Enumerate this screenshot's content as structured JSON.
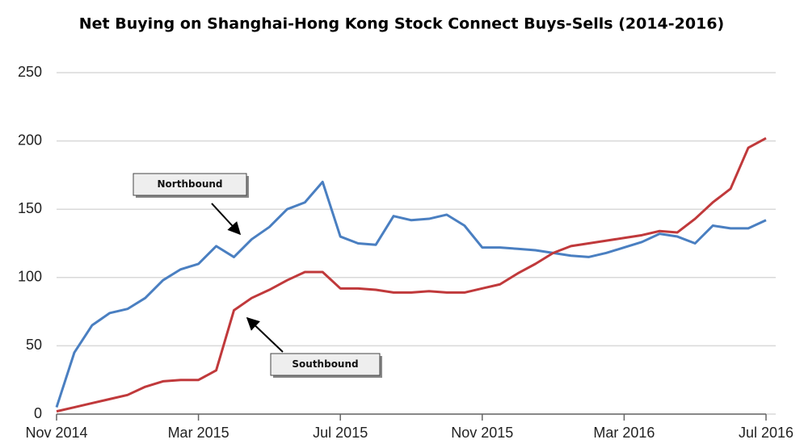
{
  "chart_data": {
    "type": "line",
    "title": "Net Buying on Shanghai-Hong Kong Stock Connect Buys-Sells (2014-2016)",
    "x": [
      0,
      0.5,
      1,
      1.5,
      2,
      2.5,
      3,
      3.5,
      4,
      4.5,
      5,
      5.5,
      6,
      6.5,
      7,
      7.5,
      8,
      8.5,
      9,
      9.5,
      10,
      10.5,
      11,
      11.5,
      12,
      12.5,
      13,
      13.5,
      14,
      14.5,
      15,
      15.5,
      16,
      16.5,
      17,
      17.5,
      18,
      18.5,
      19,
      19.5,
      20
    ],
    "series": [
      {
        "name": "Northbound",
        "color": "#4a7fc1",
        "values": [
          5,
          45,
          65,
          74,
          77,
          85,
          98,
          106,
          110,
          123,
          115,
          128,
          137,
          150,
          155,
          170,
          130,
          125,
          124,
          145,
          142,
          143,
          146,
          138,
          122,
          122,
          121,
          120,
          118,
          116,
          115,
          118,
          122,
          126,
          132,
          130,
          125,
          138,
          136,
          136,
          142
        ]
      },
      {
        "name": "Southbound",
        "color": "#c0393b",
        "values": [
          2,
          5,
          8,
          11,
          14,
          20,
          24,
          25,
          25,
          32,
          76,
          85,
          91,
          98,
          104,
          104,
          92,
          92,
          91,
          89,
          89,
          90,
          89,
          89,
          92,
          95,
          103,
          110,
          118,
          123,
          125,
          127,
          129,
          131,
          134,
          133,
          143,
          155,
          165,
          195,
          202
        ]
      }
    ],
    "annotations": [
      {
        "text": "Northbound"
      },
      {
        "text": "Southbound"
      }
    ],
    "xlim": [
      0,
      20
    ],
    "xticks": [
      {
        "value": 0,
        "label": "Nov 2014"
      },
      {
        "value": 4,
        "label": "Mar 2015"
      },
      {
        "value": 8,
        "label": "Jul 2015"
      },
      {
        "value": 12,
        "label": "Nov 2015"
      },
      {
        "value": 16,
        "label": "Mar 2016"
      },
      {
        "value": 20,
        "label": "Jul 2016"
      }
    ],
    "ylim": [
      0,
      250
    ],
    "yticks": [
      0,
      50,
      100,
      150,
      200,
      250
    ],
    "grid": true
  }
}
